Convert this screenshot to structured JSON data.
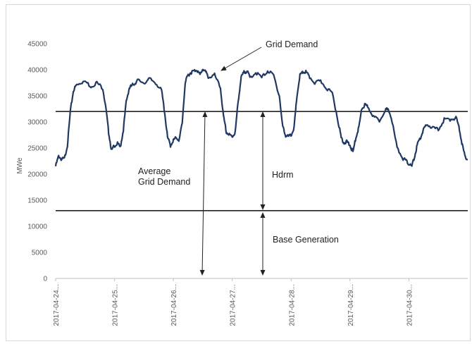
{
  "chart_data": {
    "type": "line",
    "title": "",
    "xlabel": "",
    "ylabel": "MWe",
    "ylim": [
      0,
      45000
    ],
    "yticks": [
      0,
      5000,
      10000,
      15000,
      20000,
      25000,
      30000,
      35000,
      40000,
      45000
    ],
    "xticks": [
      "2017-04-24...",
      "2017-04-25...",
      "2017-04-26...",
      "2017-04-27...",
      "2017-04-28...",
      "2017-04-29...",
      "2017-04-30..."
    ],
    "x_range_days": [
      0,
      7
    ],
    "grid": false,
    "legend": "none",
    "series": [
      {
        "color": "#203864",
        "x_days": [
          0.0,
          0.05,
          0.1,
          0.15,
          0.2,
          0.25,
          0.3,
          0.35,
          0.4,
          0.5,
          0.6,
          0.7,
          0.8,
          0.85,
          0.9,
          0.95,
          1.0,
          1.05,
          1.1,
          1.15,
          1.2,
          1.25,
          1.3,
          1.35,
          1.4,
          1.5,
          1.6,
          1.7,
          1.8,
          1.85,
          1.9,
          1.95,
          2.0,
          2.05,
          2.1,
          2.15,
          2.2,
          2.25,
          2.3,
          2.35,
          2.4,
          2.45,
          2.5,
          2.55,
          2.6,
          2.7,
          2.8,
          2.85,
          2.9,
          2.95,
          3.0,
          3.05,
          3.1,
          3.15,
          3.2,
          3.25,
          3.3,
          3.4,
          3.5,
          3.6,
          3.7,
          3.8,
          3.85,
          3.9,
          3.95,
          4.0,
          4.05,
          4.1,
          4.15,
          4.2,
          4.25,
          4.3,
          4.4,
          4.5,
          4.6,
          4.7,
          4.8,
          4.85,
          4.9,
          4.95,
          5.0,
          5.05,
          5.1,
          5.15,
          5.2,
          5.25,
          5.3,
          5.4,
          5.5,
          5.6,
          5.65,
          5.7,
          5.8,
          5.9,
          5.95,
          6.0,
          6.05,
          6.1,
          6.15,
          6.2,
          6.25,
          6.3,
          6.4,
          6.5,
          6.6,
          6.7,
          6.8,
          6.85,
          6.9,
          6.95,
          7.0
        ],
        "y": [
          21500,
          23500,
          22800,
          23000,
          25500,
          32000,
          36000,
          37000,
          37500,
          37800,
          36800,
          37500,
          36500,
          33000,
          28000,
          24500,
          25500,
          25800,
          25200,
          28500,
          34000,
          36500,
          37000,
          37500,
          38000,
          37500,
          38200,
          37500,
          36000,
          32000,
          27000,
          25500,
          26500,
          27000,
          26500,
          30000,
          37500,
          39000,
          39500,
          39800,
          40000,
          39000,
          40200,
          39500,
          38500,
          39000,
          36500,
          31000,
          28000,
          27500,
          27200,
          28000,
          34000,
          38500,
          39500,
          39800,
          38500,
          39500,
          38500,
          39800,
          39000,
          35000,
          29500,
          27500,
          27200,
          27500,
          29000,
          35000,
          39000,
          39500,
          39600,
          38800,
          37500,
          37800,
          36500,
          35500,
          30000,
          27000,
          26000,
          26200,
          25500,
          24200,
          27000,
          29000,
          32500,
          33200,
          33000,
          31000,
          30200,
          32500,
          32200,
          31000,
          25000,
          23000,
          22500,
          22000,
          21500,
          23500,
          26000,
          27000,
          28500,
          29500,
          29000,
          28500,
          30500,
          30500,
          30800,
          29000,
          26000,
          23500,
          22800
        ]
      }
    ],
    "reference_lines": [
      {
        "y": 32000,
        "name": "average"
      },
      {
        "y": 13000,
        "name": "base"
      }
    ],
    "annotations": {
      "grid_demand": "Grid Demand",
      "average_line1": "Average",
      "average_line2": "Grid Demand",
      "hdrm": "Hdrm",
      "base_generation": "Base Generation"
    }
  }
}
